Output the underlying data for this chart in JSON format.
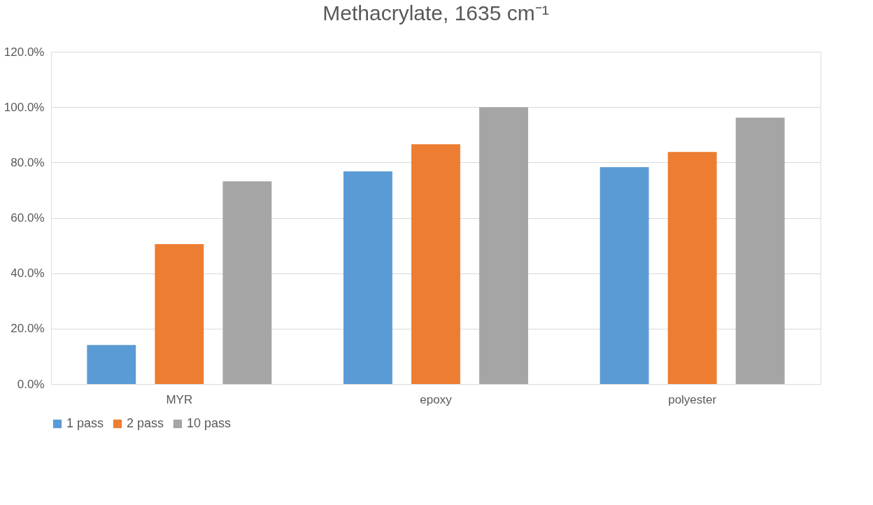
{
  "chart_data": {
    "type": "bar",
    "title": "Methacrylate, 1635 cm⁻¹",
    "categories": [
      "MYR",
      "epoxy",
      "polyester"
    ],
    "series": [
      {
        "name": "1 pass",
        "color": "#5b9bd5",
        "values": [
          14.1,
          76.8,
          78.3
        ]
      },
      {
        "name": "2 pass",
        "color": "#ed7d31",
        "values": [
          50.5,
          86.6,
          83.8
        ]
      },
      {
        "name": "10 pass",
        "color": "#a5a5a5",
        "values": [
          73.2,
          100.0,
          96.2
        ]
      }
    ],
    "ylim": [
      0,
      120
    ],
    "yticks": [
      {
        "value": 0,
        "label": "0.0%"
      },
      {
        "value": 20,
        "label": "20.0%"
      },
      {
        "value": 40,
        "label": "40.0%"
      },
      {
        "value": 60,
        "label": "60.0%"
      },
      {
        "value": 80,
        "label": "80.0%"
      },
      {
        "value": 100,
        "label": "100.0%"
      },
      {
        "value": 120,
        "label": "120.0%"
      }
    ],
    "grid": "y",
    "legend": "bottom"
  }
}
